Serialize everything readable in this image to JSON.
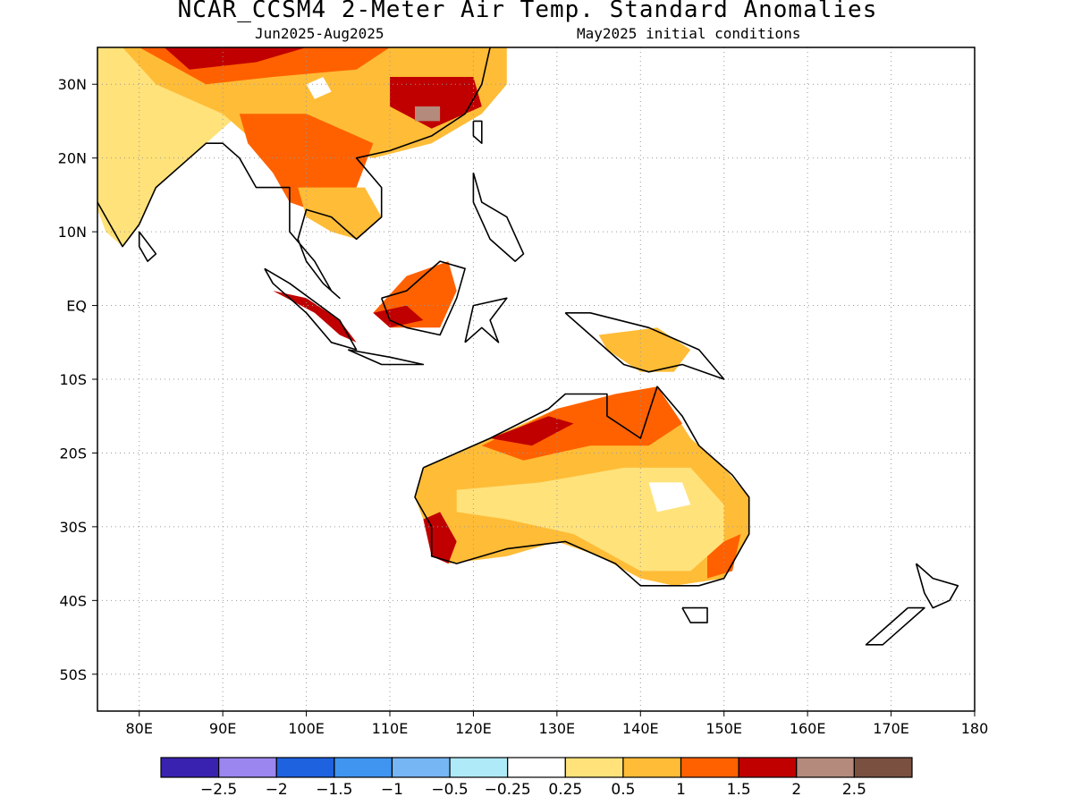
{
  "title": "NCAR_CCSM4 2-Meter Air Temp. Standard Anomalies",
  "subtitle_left": "Jun2025-Aug2025",
  "subtitle_right": "May2025 initial conditions",
  "map": {
    "lon_range": [
      75,
      180
    ],
    "lat_range": [
      -55,
      35
    ],
    "lat_ticks": [
      {
        "value": 30,
        "label": "30N"
      },
      {
        "value": 20,
        "label": "20N"
      },
      {
        "value": 10,
        "label": "10N"
      },
      {
        "value": 0,
        "label": "EQ"
      },
      {
        "value": -10,
        "label": "10S"
      },
      {
        "value": -20,
        "label": "20S"
      },
      {
        "value": -30,
        "label": "30S"
      },
      {
        "value": -40,
        "label": "40S"
      },
      {
        "value": -50,
        "label": "50S"
      }
    ],
    "lon_ticks": [
      {
        "value": 80,
        "label": "80E"
      },
      {
        "value": 90,
        "label": "90E"
      },
      {
        "value": 100,
        "label": "100E"
      },
      {
        "value": 110,
        "label": "110E"
      },
      {
        "value": 120,
        "label": "120E"
      },
      {
        "value": 130,
        "label": "130E"
      },
      {
        "value": 140,
        "label": "140E"
      },
      {
        "value": 150,
        "label": "150E"
      },
      {
        "value": 160,
        "label": "160E"
      },
      {
        "value": 170,
        "label": "170E"
      },
      {
        "value": 180,
        "label": "180"
      }
    ],
    "grid": "dotted"
  },
  "colorbar": {
    "colors": [
      "#3a22b0",
      "#9b86f0",
      "#1f62e0",
      "#3f95f0",
      "#76b6f5",
      "#aeeaf8",
      "#ffffff",
      "#ffe27a",
      "#ffbc37",
      "#ff6100",
      "#c00000",
      "#b48a7c",
      "#7a5040"
    ],
    "labels": [
      "-2.5",
      "-2",
      "-1.5",
      "-1",
      "-0.5",
      "-0.25",
      "0.25",
      "0.5",
      "1",
      "1.5",
      "2",
      "2.5"
    ]
  },
  "anomaly_regions": [
    {
      "name": "India",
      "level": 0.5,
      "color": "#ffe27a",
      "points": [
        [
          75,
          35
        ],
        [
          90,
          35
        ],
        [
          92,
          26
        ],
        [
          88,
          22
        ],
        [
          86,
          20
        ],
        [
          82,
          16
        ],
        [
          80,
          11
        ],
        [
          78,
          8
        ],
        [
          76,
          10
        ],
        [
          75,
          13
        ]
      ]
    },
    {
      "name": "Tibet-China",
      "level": 1,
      "color": "#ffbc37",
      "points": [
        [
          78,
          35
        ],
        [
          124,
          35
        ],
        [
          124,
          30
        ],
        [
          121,
          26
        ],
        [
          115,
          22
        ],
        [
          108,
          20
        ],
        [
          100,
          22
        ],
        [
          94,
          22
        ],
        [
          90,
          26
        ],
        [
          82,
          30
        ]
      ]
    },
    {
      "name": "Northern band",
      "level": 1.5,
      "color": "#ff6100",
      "points": [
        [
          80,
          35
        ],
        [
          110,
          35
        ],
        [
          106,
          32
        ],
        [
          96,
          31
        ],
        [
          88,
          30
        ]
      ]
    },
    {
      "name": "Tibet top",
      "level": 2,
      "color": "#c00000",
      "points": [
        [
          83,
          35
        ],
        [
          100,
          35
        ],
        [
          94,
          33
        ],
        [
          86,
          32
        ]
      ]
    },
    {
      "name": "SE China",
      "level": 2,
      "color": "#c00000",
      "points": [
        [
          110,
          31
        ],
        [
          120,
          31
        ],
        [
          121,
          27
        ],
        [
          115,
          24
        ],
        [
          110,
          27
        ]
      ]
    },
    {
      "name": "SE China core",
      "level": 2.5,
      "color": "#b48a7c",
      "points": [
        [
          113,
          27
        ],
        [
          116,
          27
        ],
        [
          116,
          25
        ],
        [
          113,
          25
        ]
      ]
    },
    {
      "name": "Tibet plateau",
      "level": 0.25,
      "color": "#ffffff",
      "points": [
        [
          100,
          30
        ],
        [
          102,
          31
        ],
        [
          103,
          29
        ],
        [
          101,
          28
        ]
      ]
    },
    {
      "name": "Indochina",
      "level": 1.5,
      "color": "#ff6100",
      "points": [
        [
          92,
          26
        ],
        [
          100,
          26
        ],
        [
          108,
          22
        ],
        [
          106,
          16
        ],
        [
          103,
          12
        ],
        [
          98,
          14
        ],
        [
          96,
          18
        ],
        [
          93,
          22
        ]
      ]
    },
    {
      "name": "Indochina south",
      "level": 1,
      "color": "#ffbc37",
      "points": [
        [
          99,
          16
        ],
        [
          107,
          16
        ],
        [
          109,
          12
        ],
        [
          106,
          9
        ],
        [
          103,
          10
        ],
        [
          100,
          12
        ]
      ]
    },
    {
      "name": "Sumatra",
      "level": 2,
      "color": "#c00000",
      "points": [
        [
          96,
          2
        ],
        [
          101,
          -1
        ],
        [
          104,
          -4
        ],
        [
          106,
          -5
        ],
        [
          104,
          -2
        ],
        [
          100,
          1
        ]
      ]
    },
    {
      "name": "Borneo",
      "level": 1.5,
      "color": "#ff6100",
      "points": [
        [
          108,
          -1
        ],
        [
          112,
          4
        ],
        [
          117,
          6
        ],
        [
          118,
          2
        ],
        [
          116,
          -3
        ],
        [
          110,
          -3
        ]
      ]
    },
    {
      "name": "Borneo south",
      "level": 2,
      "color": "#c00000",
      "points": [
        [
          108,
          -1
        ],
        [
          110,
          -3
        ],
        [
          114,
          -2
        ],
        [
          112,
          0
        ]
      ]
    },
    {
      "name": "New Guinea",
      "level": 1,
      "color": "#ffbc37",
      "points": [
        [
          135,
          -4
        ],
        [
          142,
          -3
        ],
        [
          146,
          -6
        ],
        [
          144,
          -9
        ],
        [
          140,
          -9
        ],
        [
          136,
          -6
        ]
      ]
    },
    {
      "name": "Australia west",
      "level": 1,
      "color": "#ffbc37",
      "points": [
        [
          114,
          -22
        ],
        [
          122,
          -18
        ],
        [
          130,
          -14
        ],
        [
          137,
          -12
        ],
        [
          142,
          -11
        ],
        [
          146,
          -18
        ],
        [
          150,
          -22
        ],
        [
          153,
          -26
        ],
        [
          153,
          -31
        ],
        [
          150,
          -37
        ],
        [
          144,
          -38
        ],
        [
          140,
          -37
        ],
        [
          135,
          -34
        ],
        [
          130,
          -32
        ],
        [
          124,
          -34
        ],
        [
          117,
          -35
        ],
        [
          115,
          -32
        ],
        [
          113,
          -26
        ]
      ]
    },
    {
      "name": "Australia north",
      "level": 1.5,
      "color": "#ff6100",
      "points": [
        [
          121,
          -19
        ],
        [
          130,
          -14
        ],
        [
          137,
          -12
        ],
        [
          142,
          -11
        ],
        [
          145,
          -16
        ],
        [
          141,
          -19
        ],
        [
          134,
          -19
        ],
        [
          126,
          -21
        ]
      ]
    },
    {
      "name": "Kimberley",
      "level": 2,
      "color": "#c00000",
      "points": [
        [
          122,
          -18
        ],
        [
          129,
          -15
        ],
        [
          132,
          -16
        ],
        [
          127,
          -19
        ]
      ]
    },
    {
      "name": "SW Australia",
      "level": 2,
      "color": "#c00000",
      "points": [
        [
          114,
          -29
        ],
        [
          116,
          -28
        ],
        [
          118,
          -32
        ],
        [
          117,
          -35
        ],
        [
          115,
          -34
        ]
      ]
    },
    {
      "name": "SE Australia",
      "level": 1.5,
      "color": "#ff6100",
      "points": [
        [
          148,
          -33
        ],
        [
          152,
          -31
        ],
        [
          151,
          -36
        ],
        [
          148,
          -37
        ]
      ]
    },
    {
      "name": "Australia interior",
      "level": 0.5,
      "color": "#ffe27a",
      "points": [
        [
          118,
          -25
        ],
        [
          128,
          -24
        ],
        [
          138,
          -22
        ],
        [
          146,
          -22
        ],
        [
          150,
          -27
        ],
        [
          150,
          -32
        ],
        [
          146,
          -36
        ],
        [
          140,
          -36
        ],
        [
          132,
          -31
        ],
        [
          124,
          -29
        ],
        [
          118,
          -28
        ]
      ]
    },
    {
      "name": "Australia center",
      "level": 0.25,
      "color": "#ffffff",
      "points": [
        [
          141,
          -24
        ],
        [
          145,
          -24
        ],
        [
          146,
          -27
        ],
        [
          142,
          -28
        ]
      ]
    }
  ],
  "land_outlines": [
    {
      "name": "India",
      "points": [
        [
          75,
          22
        ],
        [
          73,
          20
        ],
        [
          75,
          14
        ],
        [
          78,
          8
        ],
        [
          80,
          11
        ],
        [
          82,
          16
        ],
        [
          86,
          20
        ],
        [
          88,
          22
        ],
        [
          90,
          22
        ],
        [
          92,
          20
        ],
        [
          94,
          16
        ],
        [
          98,
          16
        ],
        [
          98,
          10
        ],
        [
          101,
          6
        ],
        [
          103,
          2
        ],
        [
          104,
          1
        ],
        [
          102,
          3
        ],
        [
          100,
          6
        ],
        [
          99,
          9
        ],
        [
          100,
          13
        ],
        [
          103,
          12
        ],
        [
          106,
          9
        ],
        [
          109,
          12
        ],
        [
          109,
          16
        ],
        [
          106,
          20
        ],
        [
          110,
          21
        ],
        [
          115,
          23
        ],
        [
          119,
          26
        ],
        [
          121,
          30
        ],
        [
          122,
          35
        ]
      ]
    },
    {
      "name": "Sumatra",
      "points": [
        [
          95,
          5
        ],
        [
          98,
          3
        ],
        [
          104,
          -2
        ],
        [
          106,
          -6
        ],
        [
          103,
          -5
        ],
        [
          100,
          -1
        ],
        [
          96,
          3
        ],
        [
          95,
          5
        ]
      ]
    },
    {
      "name": "Java",
      "points": [
        [
          105,
          -6
        ],
        [
          110,
          -7
        ],
        [
          114,
          -8
        ],
        [
          109,
          -8
        ],
        [
          105,
          -6
        ]
      ]
    },
    {
      "name": "Borneo",
      "points": [
        [
          109,
          1
        ],
        [
          112,
          2
        ],
        [
          116,
          6
        ],
        [
          119,
          5
        ],
        [
          118,
          1
        ],
        [
          116,
          -4
        ],
        [
          112,
          -3
        ],
        [
          110,
          -2
        ],
        [
          109,
          1
        ]
      ]
    },
    {
      "name": "Sulawesi",
      "points": [
        [
          119,
          -5
        ],
        [
          120,
          0
        ],
        [
          124,
          1
        ],
        [
          122,
          -2
        ],
        [
          123,
          -5
        ],
        [
          121,
          -3
        ],
        [
          119,
          -5
        ]
      ]
    },
    {
      "name": "Philippines",
      "points": [
        [
          120,
          18
        ],
        [
          121,
          14
        ],
        [
          124,
          12
        ],
        [
          126,
          7
        ],
        [
          125,
          6
        ],
        [
          122,
          9
        ],
        [
          120,
          14
        ],
        [
          120,
          18
        ]
      ]
    },
    {
      "name": "Taiwan",
      "points": [
        [
          120,
          25
        ],
        [
          121,
          25
        ],
        [
          121,
          22
        ],
        [
          120,
          23
        ],
        [
          120,
          25
        ]
      ]
    },
    {
      "name": "New Guinea",
      "points": [
        [
          131,
          -1
        ],
        [
          134,
          -1
        ],
        [
          141,
          -3
        ],
        [
          147,
          -6
        ],
        [
          150,
          -10
        ],
        [
          145,
          -8
        ],
        [
          141,
          -9
        ],
        [
          138,
          -8
        ],
        [
          134,
          -4
        ],
        [
          131,
          -1
        ]
      ]
    },
    {
      "name": "Australia",
      "points": [
        [
          114,
          -22
        ],
        [
          122,
          -18
        ],
        [
          129,
          -14
        ],
        [
          131,
          -12
        ],
        [
          136,
          -12
        ],
        [
          136,
          -15
        ],
        [
          140,
          -18
        ],
        [
          142,
          -11
        ],
        [
          145,
          -15
        ],
        [
          147,
          -19
        ],
        [
          151,
          -23
        ],
        [
          153,
          -26
        ],
        [
          153,
          -31
        ],
        [
          150,
          -37
        ],
        [
          147,
          -38
        ],
        [
          144,
          -38
        ],
        [
          140,
          -38
        ],
        [
          137,
          -35
        ],
        [
          135,
          -34
        ],
        [
          131,
          -32
        ],
        [
          124,
          -33
        ],
        [
          118,
          -35
        ],
        [
          115,
          -34
        ],
        [
          115,
          -30
        ],
        [
          113,
          -26
        ],
        [
          114,
          -22
        ]
      ]
    },
    {
      "name": "Tasmania",
      "points": [
        [
          145,
          -41
        ],
        [
          148,
          -41
        ],
        [
          148,
          -43
        ],
        [
          146,
          -43
        ],
        [
          145,
          -41
        ]
      ]
    },
    {
      "name": "New Zealand North",
      "points": [
        [
          173,
          -35
        ],
        [
          175,
          -37
        ],
        [
          178,
          -38
        ],
        [
          177,
          -40
        ],
        [
          175,
          -41
        ],
        [
          174,
          -39
        ],
        [
          173,
          -35
        ]
      ]
    },
    {
      "name": "New Zealand South",
      "points": [
        [
          172,
          -41
        ],
        [
          174,
          -41
        ],
        [
          171,
          -44
        ],
        [
          169,
          -46
        ],
        [
          167,
          -46
        ],
        [
          170,
          -43
        ],
        [
          172,
          -41
        ]
      ]
    },
    {
      "name": "Sri Lanka",
      "points": [
        [
          80,
          10
        ],
        [
          82,
          7
        ],
        [
          81,
          6
        ],
        [
          80,
          8
        ],
        [
          80,
          10
        ]
      ]
    }
  ]
}
